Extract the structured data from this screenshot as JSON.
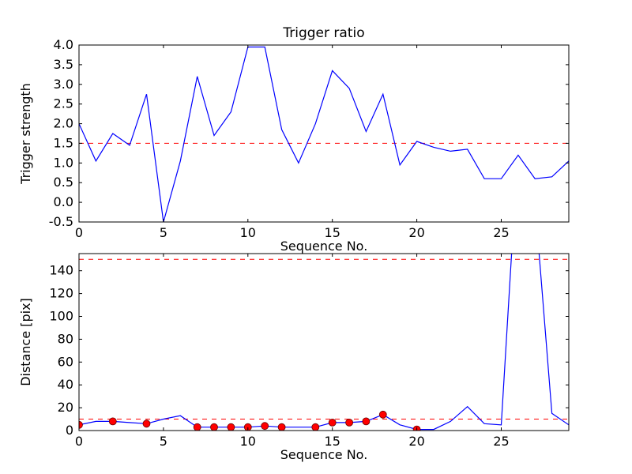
{
  "figure": {
    "background": "#ffffff",
    "frame_color": "#000000"
  },
  "chart_data": [
    {
      "type": "line",
      "title": "Trigger ratio",
      "xlabel": "Sequence No.",
      "ylabel": "Trigger strength",
      "xlim": [
        0,
        29
      ],
      "ylim": [
        -0.5,
        4.0
      ],
      "grid": false,
      "legend": "none",
      "line_color": "#0000ff",
      "dashed_color": "#ff0000",
      "hlines": [
        1.5
      ],
      "xticks": {
        "values": [
          0,
          5,
          10,
          15,
          20,
          25
        ],
        "labels": [
          "0",
          "5",
          "10",
          "15",
          "20",
          "25"
        ]
      },
      "yticks": {
        "values": [
          -0.5,
          0.0,
          0.5,
          1.0,
          1.5,
          2.0,
          2.5,
          3.0,
          3.5,
          4.0
        ],
        "labels": [
          "-0.5",
          "0.0",
          "0.5",
          "1.0",
          "1.5",
          "2.0",
          "2.5",
          "3.0",
          "3.5",
          "4.0"
        ]
      },
      "x": [
        0,
        1,
        2,
        3,
        4,
        5,
        6,
        7,
        8,
        9,
        10,
        11,
        12,
        13,
        14,
        15,
        16,
        17,
        18,
        19,
        20,
        21,
        22,
        23,
        24,
        25,
        26,
        27,
        28,
        29
      ],
      "values": [
        2.0,
        1.05,
        1.75,
        1.45,
        2.75,
        -0.5,
        1.05,
        3.2,
        1.7,
        2.3,
        3.95,
        3.95,
        1.85,
        1.0,
        2.0,
        3.35,
        2.9,
        1.8,
        2.75,
        0.95,
        1.55,
        1.4,
        1.3,
        1.35,
        0.6,
        0.6,
        1.2,
        0.6,
        0.65,
        1.05
      ]
    },
    {
      "type": "line",
      "title": "",
      "xlabel": "Sequence No.",
      "ylabel": "Distance [pix]",
      "xlim": [
        0,
        29
      ],
      "ylim": [
        0,
        155
      ],
      "grid": false,
      "legend": "none",
      "line_color": "#0000ff",
      "dashed_color": "#ff0000",
      "hlines": [
        150,
        10
      ],
      "xticks": {
        "values": [
          0,
          5,
          10,
          15,
          20,
          25
        ],
        "labels": [
          "0",
          "5",
          "10",
          "15",
          "20",
          "25"
        ]
      },
      "yticks": {
        "values": [
          0,
          20,
          40,
          60,
          80,
          100,
          120,
          140
        ],
        "labels": [
          "0",
          "20",
          "40",
          "60",
          "80",
          "100",
          "120",
          "140"
        ]
      },
      "x": [
        0,
        1,
        2,
        3,
        4,
        5,
        6,
        7,
        8,
        9,
        10,
        11,
        12,
        13,
        14,
        15,
        16,
        17,
        18,
        19,
        20,
        21,
        22,
        23,
        24,
        25,
        26,
        27,
        28,
        29
      ],
      "values": [
        5,
        8,
        8,
        7,
        6,
        10,
        13,
        3,
        3,
        3,
        3,
        4,
        3,
        3,
        3,
        7,
        7,
        8,
        14,
        5,
        1,
        1,
        8,
        21,
        6,
        5,
        250,
        200,
        15,
        5
      ],
      "markers": {
        "color": "#ff0000",
        "edge_color": "#660000",
        "x": [
          0,
          2,
          4,
          7,
          8,
          9,
          10,
          11,
          12,
          14,
          15,
          16,
          17,
          18,
          20
        ],
        "y": [
          5,
          8,
          6,
          3,
          3,
          3,
          3,
          4,
          3,
          3,
          7,
          7,
          8,
          14,
          1
        ]
      }
    }
  ]
}
